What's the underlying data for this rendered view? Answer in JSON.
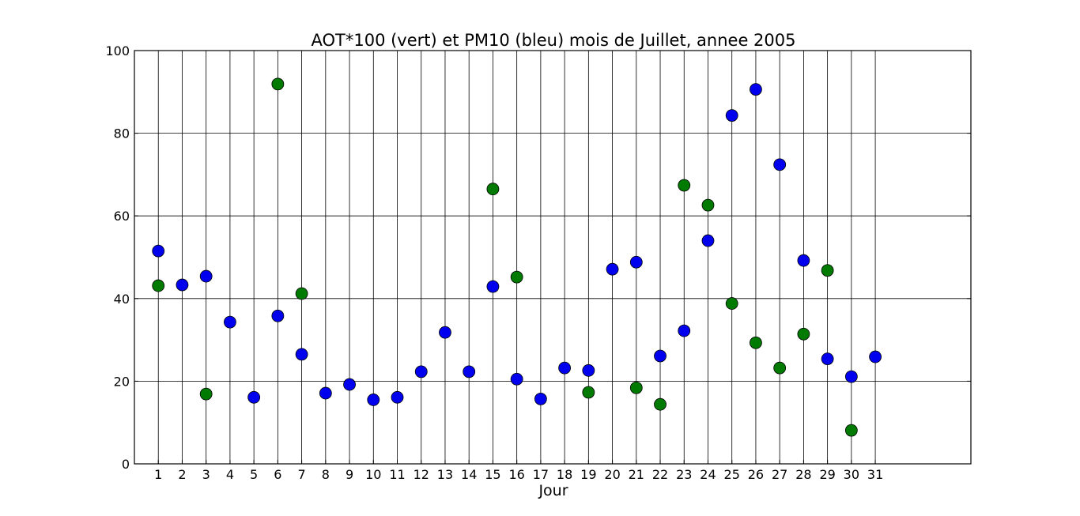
{
  "chart_data": {
    "type": "scatter",
    "title": "AOT*100 (vert) et PM10 (bleu) mois de Juillet, annee 2005",
    "xlabel": "Jour",
    "ylabel": "",
    "xlim": [
      0,
      35
    ],
    "ylim": [
      0,
      100
    ],
    "x_ticks": [
      1,
      2,
      3,
      4,
      5,
      6,
      7,
      8,
      9,
      10,
      11,
      12,
      13,
      14,
      15,
      16,
      17,
      18,
      19,
      20,
      21,
      22,
      23,
      24,
      25,
      26,
      27,
      28,
      29,
      30,
      31
    ],
    "y_ticks": [
      0,
      20,
      40,
      60,
      80,
      100
    ],
    "grid": true,
    "series": [
      {
        "color": "#0000ee",
        "points": [
          {
            "x": 1,
            "y": 51.5
          },
          {
            "x": 2,
            "y": 43.3
          },
          {
            "x": 3,
            "y": 45.4
          },
          {
            "x": 4,
            "y": 34.3
          },
          {
            "x": 5,
            "y": 16.1
          },
          {
            "x": 6,
            "y": 35.8
          },
          {
            "x": 7,
            "y": 26.5
          },
          {
            "x": 8,
            "y": 17.1
          },
          {
            "x": 9,
            "y": 19.2
          },
          {
            "x": 10,
            "y": 15.5
          },
          {
            "x": 11,
            "y": 16.1
          },
          {
            "x": 12,
            "y": 22.3
          },
          {
            "x": 13,
            "y": 31.8
          },
          {
            "x": 14,
            "y": 22.3
          },
          {
            "x": 15,
            "y": 42.9
          },
          {
            "x": 16,
            "y": 20.5
          },
          {
            "x": 17,
            "y": 15.7
          },
          {
            "x": 18,
            "y": 23.2
          },
          {
            "x": 19,
            "y": 22.6
          },
          {
            "x": 20,
            "y": 47.1
          },
          {
            "x": 21,
            "y": 48.8
          },
          {
            "x": 22,
            "y": 26.1
          },
          {
            "x": 23,
            "y": 32.2
          },
          {
            "x": 24,
            "y": 54.0
          },
          {
            "x": 25,
            "y": 84.3
          },
          {
            "x": 26,
            "y": 90.6
          },
          {
            "x": 27,
            "y": 72.4
          },
          {
            "x": 28,
            "y": 49.2
          },
          {
            "x": 29,
            "y": 25.4
          },
          {
            "x": 30,
            "y": 21.1
          },
          {
            "x": 31,
            "y": 25.9
          }
        ]
      },
      {
        "color": "#007a00",
        "points": [
          {
            "x": 1,
            "y": 43.1
          },
          {
            "x": 3,
            "y": 16.9
          },
          {
            "x": 6,
            "y": 91.9
          },
          {
            "x": 7,
            "y": 41.2
          },
          {
            "x": 15,
            "y": 66.5
          },
          {
            "x": 16,
            "y": 45.2
          },
          {
            "x": 19,
            "y": 17.3
          },
          {
            "x": 21,
            "y": 18.4
          },
          {
            "x": 22,
            "y": 14.4
          },
          {
            "x": 23,
            "y": 67.4
          },
          {
            "x": 24,
            "y": 62.6
          },
          {
            "x": 25,
            "y": 38.8
          },
          {
            "x": 26,
            "y": 29.3
          },
          {
            "x": 27,
            "y": 23.2
          },
          {
            "x": 28,
            "y": 31.4
          },
          {
            "x": 29,
            "y": 46.8
          },
          {
            "x": 30,
            "y": 8.1
          }
        ]
      }
    ]
  }
}
